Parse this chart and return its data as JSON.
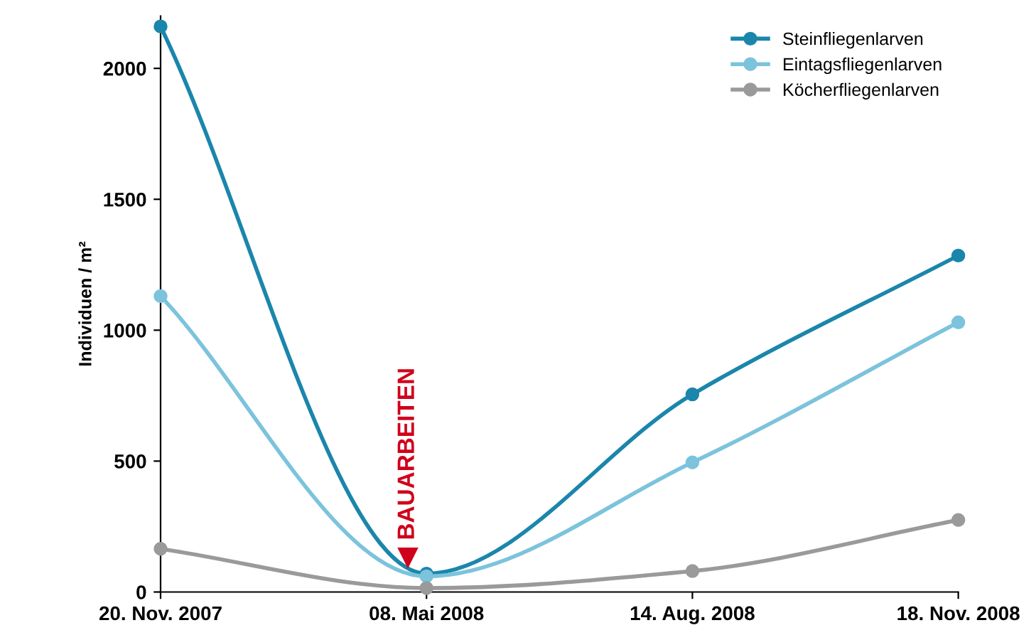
{
  "chart_data": {
    "type": "line",
    "ylabel": "Individuen / m²",
    "categories": [
      "20. Nov. 2007",
      "08. Mai 2008",
      "14. Aug. 2008",
      "18. Nov. 2008"
    ],
    "series": [
      {
        "name": "Steinfliegenlarven",
        "color": "#1b86ab",
        "values": [
          2160,
          70,
          755,
          1285
        ]
      },
      {
        "name": "Eintagsfliegenlarven",
        "color": "#7cc3dc",
        "values": [
          1130,
          60,
          495,
          1030
        ]
      },
      {
        "name": "Köcherfliegenlarven",
        "color": "#9a9a9a",
        "values": [
          165,
          15,
          80,
          275
        ]
      }
    ],
    "ylim": [
      0,
      2200
    ],
    "yticks": [
      0,
      500,
      1000,
      1500,
      2000
    ],
    "annotations": [
      "BAUARBEITEN"
    ],
    "grid": false,
    "legend": "top right",
    "marker": "circle",
    "line_style": "solid"
  }
}
